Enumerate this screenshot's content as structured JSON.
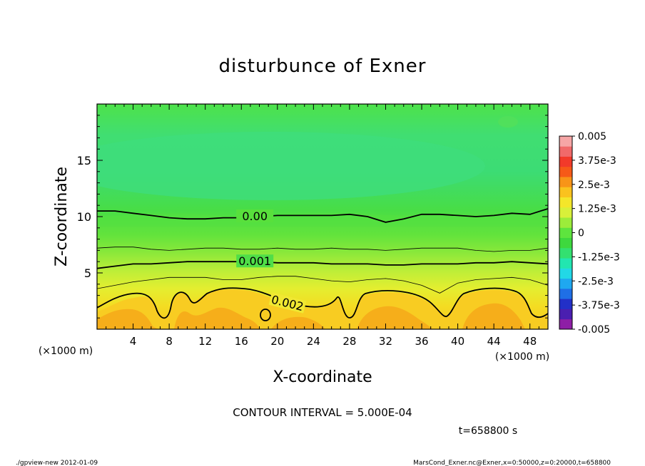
{
  "chart_data": {
    "type": "contour",
    "title": "disturbunce of Exner",
    "xlabel": "X-coordinate",
    "ylabel": "Z-coordinate",
    "x_unit": "(×1000 m)",
    "y_unit": "(×1000 m)",
    "xlim": [
      0,
      50
    ],
    "ylim": [
      0,
      20
    ],
    "x_ticks": [
      4,
      8,
      12,
      16,
      20,
      24,
      28,
      32,
      36,
      40,
      44,
      48
    ],
    "y_ticks": [
      5,
      10,
      15
    ],
    "contour_levels": [
      {
        "value": 0.0,
        "label": "0.00",
        "z": [
          10.5,
          10.5,
          10.3,
          10.1,
          9.9,
          9.8,
          9.8,
          9.9,
          9.9,
          10.0,
          10.1,
          10.1,
          10.1,
          10.1,
          10.2,
          10.0,
          9.5,
          9.8,
          10.2,
          10.2,
          10.1,
          10.0,
          10.1,
          10.3,
          10.2,
          10.7
        ],
        "bold": true
      },
      {
        "value": 0.0005,
        "label": "",
        "z": [
          7.2,
          7.3,
          7.3,
          7.1,
          7.0,
          7.1,
          7.2,
          7.2,
          7.1,
          7.1,
          7.2,
          7.1,
          7.1,
          7.2,
          7.1,
          7.1,
          7.0,
          7.1,
          7.2,
          7.2,
          7.2,
          7.0,
          6.9,
          7.0,
          7.0,
          7.2
        ],
        "bold": false
      },
      {
        "value": 0.001,
        "label": "0.001",
        "z": [
          5.4,
          5.6,
          5.8,
          5.8,
          5.9,
          6.0,
          6.0,
          6.0,
          6.0,
          6.0,
          5.9,
          5.9,
          5.9,
          5.8,
          5.8,
          5.8,
          5.7,
          5.7,
          5.8,
          5.8,
          5.8,
          5.9,
          5.9,
          6.0,
          5.9,
          5.8
        ],
        "bold": true
      },
      {
        "value": 0.0015,
        "label": "",
        "z": [
          3.6,
          3.9,
          4.2,
          4.4,
          4.6,
          4.6,
          4.6,
          4.4,
          4.4,
          4.6,
          4.7,
          4.7,
          4.5,
          4.3,
          4.2,
          4.4,
          4.5,
          4.3,
          3.9,
          3.2,
          4.1,
          4.4,
          4.5,
          4.6,
          4.4,
          3.9
        ],
        "bold": false
      }
    ],
    "annotation_label": "0.002",
    "colorbar": {
      "labels": [
        "0.005",
        "3.75e-3",
        "2.5e-3",
        "1.25e-3",
        "0",
        "-1.25e-3",
        "-2.5e-3",
        "-3.75e-3",
        "-0.005"
      ],
      "min": -0.005,
      "max": 0.005,
      "colors": [
        "#8e1ea6",
        "#4a1fb0",
        "#2230c8",
        "#1f6fe6",
        "#1fa8f0",
        "#22d8e6",
        "#22e6b0",
        "#33e070",
        "#3ed83e",
        "#5ee43e",
        "#9cec3a",
        "#d8f03a",
        "#f4e62a",
        "#fac21e",
        "#f89418",
        "#f65a18",
        "#f23a2a",
        "#f06a6a",
        "#f6a6a6"
      ]
    },
    "contour_interval": "CONTOUR INTERVAL = 5.000E-04",
    "time_label": "t=658800 s"
  },
  "footer": {
    "program": "./gpview-new   2012-01-09",
    "source": "MarsCond_Exner.nc@Exner,x=0:50000,z=0:20000,t=658800"
  }
}
